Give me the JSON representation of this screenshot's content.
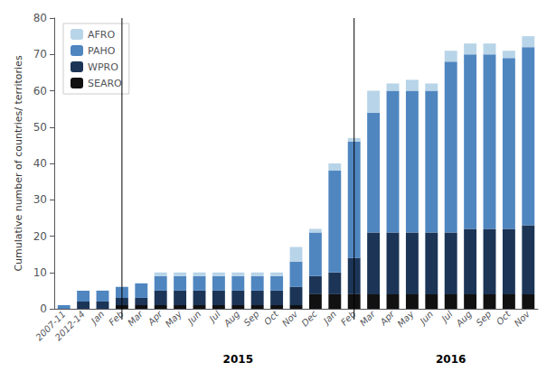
{
  "chart_data": {
    "type": "bar",
    "stacked": true,
    "ylabel": "Cumulative number of countries/ territories",
    "categories": [
      "2007-11",
      "2012-14",
      "Jan",
      "Feb",
      "Mar",
      "Apr",
      "May",
      "Jun",
      "Jul",
      "Aug",
      "Sep",
      "Oct",
      "Nov",
      "Dec",
      "Jan",
      "Feb",
      "Mar",
      "Apr",
      "May",
      "Jun",
      "Jul",
      "Aug",
      "Sep",
      "Oct",
      "Nov"
    ],
    "series": [
      {
        "name": "SEARO",
        "color": "#111111",
        "values": [
          0,
          0,
          0,
          1,
          1,
          1,
          1,
          1,
          1,
          1,
          1,
          1,
          1,
          4,
          4,
          4,
          4,
          4,
          4,
          4,
          4,
          4,
          4,
          4,
          4
        ]
      },
      {
        "name": "WPRO",
        "color": "#1c3557",
        "values": [
          0,
          2,
          2,
          2,
          2,
          4,
          4,
          4,
          4,
          4,
          4,
          4,
          5,
          5,
          6,
          10,
          17,
          17,
          17,
          17,
          17,
          18,
          18,
          18,
          19
        ]
      },
      {
        "name": "PAHO",
        "color": "#4f86c0",
        "values": [
          1,
          3,
          3,
          3,
          4,
          4,
          4,
          4,
          4,
          4,
          4,
          4,
          7,
          12,
          28,
          32,
          33,
          39,
          39,
          39,
          47,
          48,
          48,
          47,
          49
        ]
      },
      {
        "name": "AFRO",
        "color": "#b8d4e8",
        "values": [
          0,
          0,
          0,
          0,
          0,
          1,
          1,
          1,
          1,
          1,
          1,
          1,
          4,
          1,
          2,
          1,
          6,
          2,
          3,
          2,
          3,
          3,
          3,
          2,
          3
        ]
      }
    ],
    "ylim": [
      0,
      80
    ],
    "yticks": [
      0,
      10,
      20,
      30,
      40,
      50,
      60,
      70,
      80
    ],
    "grid": false,
    "legend": "upper left",
    "dividers": [
      2.5,
      14.5
    ],
    "annotations": [
      {
        "text": "2015",
        "x": 8.5
      },
      {
        "text": "2016",
        "x": 19.5
      }
    ]
  }
}
